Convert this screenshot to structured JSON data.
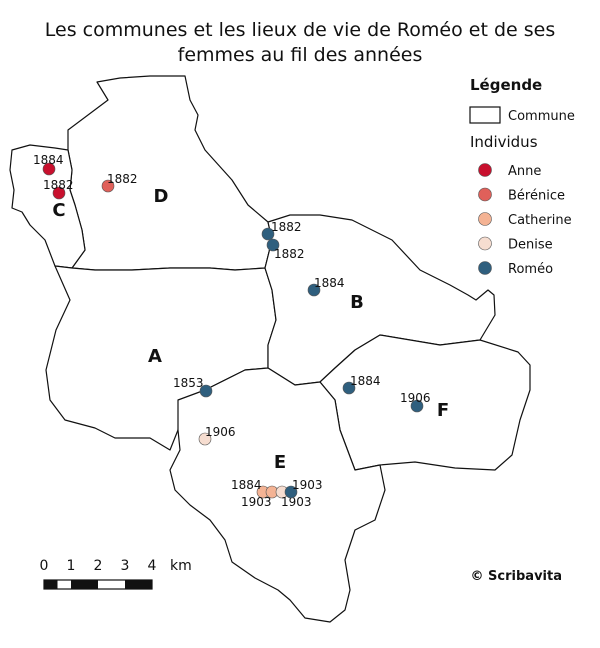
{
  "title_line1": "Les communes et les lieux de vie de Roméo et de ses",
  "title_line2": "femmes au fil des années",
  "legend": {
    "title": "Légende",
    "commune_label": "Commune",
    "individuals_title": "Individus",
    "individuals": [
      {
        "name": "Anne",
        "color": "#c8102e"
      },
      {
        "name": "Bérénice",
        "color": "#e0605a"
      },
      {
        "name": "Catherine",
        "color": "#f4b394"
      },
      {
        "name": "Denise",
        "color": "#f6ddd0"
      },
      {
        "name": "Roméo",
        "color": "#2f5f7e"
      }
    ]
  },
  "communes": [
    "A",
    "B",
    "C",
    "D",
    "E",
    "F"
  ],
  "points": [
    {
      "person": "Anne",
      "year": "1884"
    },
    {
      "person": "Anne",
      "year": "1882"
    },
    {
      "person": "Bérénice",
      "year": "1882"
    },
    {
      "person": "Roméo",
      "year": "1882"
    },
    {
      "person": "Roméo",
      "year": "1882"
    },
    {
      "person": "Roméo",
      "year": "1884"
    },
    {
      "person": "Roméo",
      "year": "1853"
    },
    {
      "person": "Roméo",
      "year": "1884"
    },
    {
      "person": "Roméo",
      "year": "1906"
    },
    {
      "person": "Denise",
      "year": "1906"
    },
    {
      "person": "Catherine",
      "year": "1884"
    },
    {
      "person": "Catherine",
      "year": "1903"
    },
    {
      "person": "Denise",
      "year": "1903"
    },
    {
      "person": "Roméo",
      "year": "1903"
    }
  ],
  "scale": {
    "ticks": [
      "0",
      "1",
      "2",
      "3",
      "4"
    ],
    "unit": "km"
  },
  "copyright": "© Scribavita"
}
